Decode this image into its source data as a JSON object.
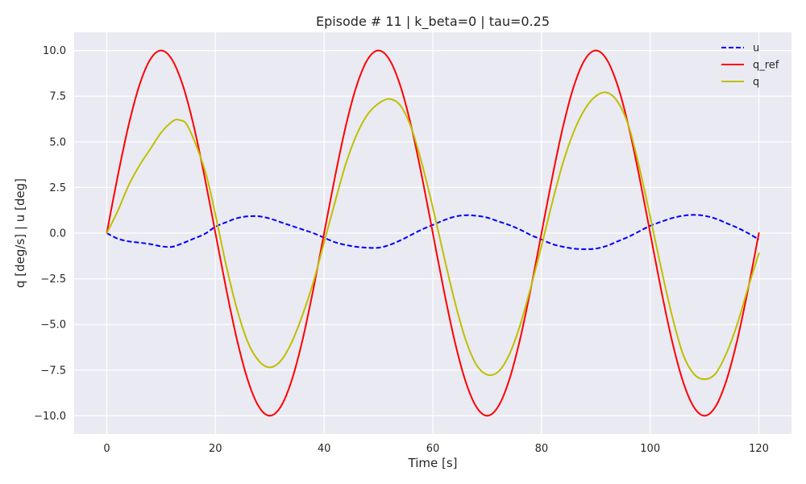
{
  "chart_data": {
    "type": "line",
    "title": "Episode # 11 | k_beta=0 | tau=0.25",
    "xlabel": "Time [s]",
    "ylabel": "q [deg/s]  |  u [deg]",
    "xlim": [
      -6,
      126
    ],
    "ylim": [
      -11,
      11
    ],
    "xticks": [
      0,
      20,
      40,
      60,
      80,
      100,
      120
    ],
    "yticks": [
      -10.0,
      -7.5,
      -5.0,
      -2.5,
      0.0,
      2.5,
      5.0,
      7.5,
      10.0
    ],
    "xtick_labels": [
      "0",
      "20",
      "40",
      "60",
      "80",
      "100",
      "120"
    ],
    "ytick_labels": [
      "−10.0",
      "−7.5",
      "−5.0",
      "−2.5",
      "0.0",
      "2.5",
      "5.0",
      "7.5",
      "10.0"
    ],
    "grid": true,
    "legend_position": "top-right",
    "colors": {
      "background": "#eaeaf2",
      "grid": "#ffffff",
      "u": "#0000ff",
      "q_ref": "#ff0000",
      "q": "#bfbf00"
    },
    "series": [
      {
        "name": "u",
        "style": "dashed",
        "color": "#0000ff",
        "x": [
          0,
          2,
          4,
          6,
          8,
          10,
          12,
          14,
          16,
          18,
          20,
          22,
          24,
          26,
          28,
          30,
          32,
          34,
          36,
          38,
          40,
          42,
          44,
          46,
          48,
          50,
          52,
          54,
          56,
          58,
          60,
          62,
          64,
          66,
          68,
          70,
          72,
          74,
          76,
          78,
          80,
          82,
          84,
          86,
          88,
          90,
          92,
          94,
          96,
          98,
          100,
          102,
          104,
          106,
          108,
          110,
          112,
          114,
          116,
          118,
          120
        ],
        "y": [
          0.0,
          -0.3,
          -0.45,
          -0.52,
          -0.6,
          -0.72,
          -0.75,
          -0.55,
          -0.3,
          -0.05,
          0.35,
          0.6,
          0.82,
          0.92,
          0.92,
          0.8,
          0.6,
          0.4,
          0.2,
          0.0,
          -0.25,
          -0.5,
          -0.65,
          -0.75,
          -0.8,
          -0.8,
          -0.65,
          -0.4,
          -0.1,
          0.2,
          0.45,
          0.7,
          0.9,
          0.98,
          0.95,
          0.85,
          0.65,
          0.45,
          0.2,
          -0.1,
          -0.35,
          -0.6,
          -0.75,
          -0.85,
          -0.88,
          -0.85,
          -0.7,
          -0.45,
          -0.2,
          0.1,
          0.4,
          0.62,
          0.82,
          0.95,
          1.0,
          0.95,
          0.8,
          0.55,
          0.3,
          0.0,
          -0.35
        ]
      },
      {
        "name": "q_ref",
        "style": "solid",
        "color": "#ff0000",
        "x": [
          0,
          2,
          4,
          6,
          8,
          10,
          12,
          14,
          16,
          18,
          20,
          22,
          24,
          26,
          28,
          30,
          32,
          34,
          36,
          38,
          40,
          42,
          44,
          46,
          48,
          50,
          52,
          54,
          56,
          58,
          60,
          62,
          64,
          66,
          68,
          70,
          72,
          74,
          76,
          78,
          80,
          82,
          84,
          86,
          88,
          90,
          92,
          94,
          96,
          98,
          100,
          102,
          104,
          106,
          108,
          110,
          112,
          114,
          116,
          118,
          120
        ],
        "y": [
          0.0,
          3.09,
          5.88,
          8.09,
          9.51,
          10.0,
          9.51,
          8.09,
          5.88,
          3.09,
          0.0,
          -3.09,
          -5.88,
          -8.09,
          -9.51,
          -10.0,
          -9.51,
          -8.09,
          -5.88,
          -3.09,
          0.0,
          3.09,
          5.88,
          8.09,
          9.51,
          10.0,
          9.51,
          8.09,
          5.88,
          3.09,
          0.0,
          -3.09,
          -5.88,
          -8.09,
          -9.51,
          -10.0,
          -9.51,
          -8.09,
          -5.88,
          -3.09,
          0.0,
          3.09,
          5.88,
          8.09,
          9.51,
          10.0,
          9.51,
          8.09,
          5.88,
          3.09,
          0.0,
          -3.09,
          -5.88,
          -8.09,
          -9.51,
          -10.0,
          -9.51,
          -8.09,
          -5.88,
          -3.09,
          0.0
        ]
      },
      {
        "name": "q",
        "style": "solid",
        "color": "#bfbf00",
        "x": [
          0,
          2,
          4,
          6,
          8,
          10,
          12,
          13.3,
          15,
          18,
          20,
          22,
          24,
          26,
          28,
          30,
          32,
          34,
          36,
          38,
          40,
          42,
          44,
          46,
          48,
          50,
          52,
          54,
          56,
          58,
          60,
          62,
          64,
          66,
          68,
          70,
          72,
          74,
          76,
          78,
          80,
          82,
          84,
          86,
          88,
          90,
          92,
          94,
          96,
          98,
          100,
          102,
          104,
          106,
          108,
          110,
          112,
          114,
          116,
          118,
          120
        ],
        "y": [
          0.0,
          1.2,
          2.6,
          3.7,
          4.6,
          5.5,
          6.1,
          6.2,
          5.8,
          3.5,
          1.0,
          -1.8,
          -4.2,
          -6.0,
          -7.0,
          -7.35,
          -7.0,
          -6.0,
          -4.5,
          -2.7,
          -0.5,
          1.7,
          3.8,
          5.4,
          6.5,
          7.1,
          7.35,
          7.0,
          5.8,
          3.8,
          1.4,
          -1.2,
          -3.7,
          -5.8,
          -7.2,
          -7.75,
          -7.6,
          -6.7,
          -5.1,
          -3.0,
          -0.7,
          1.7,
          3.9,
          5.6,
          6.8,
          7.5,
          7.7,
          7.2,
          5.9,
          3.6,
          0.9,
          -1.9,
          -4.5,
          -6.6,
          -7.7,
          -8.0,
          -7.7,
          -6.6,
          -5.0,
          -3.0,
          -1.1
        ]
      }
    ]
  }
}
